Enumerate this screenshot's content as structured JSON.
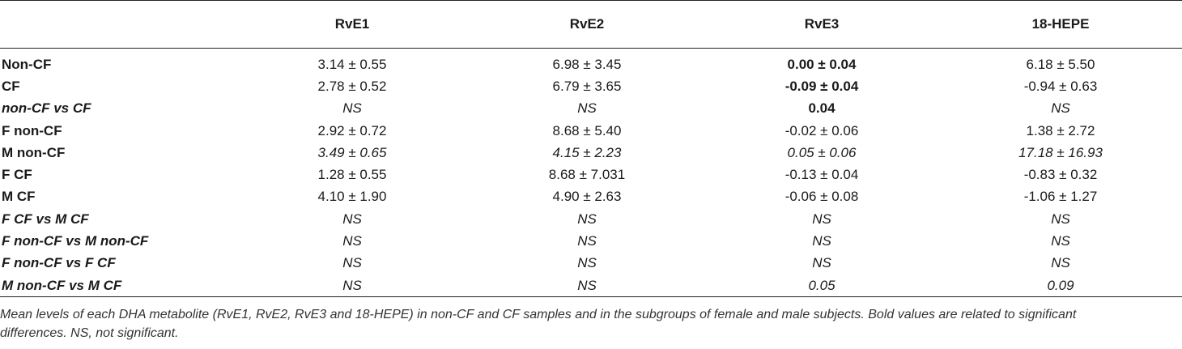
{
  "table": {
    "headers": [
      "",
      "RvE1",
      "RvE2",
      "RvE3",
      "18-HEPE"
    ],
    "rows": [
      {
        "label": "Non-CF",
        "label_style": "b",
        "cells": [
          {
            "text": "3.14 ± 0.55",
            "style": ""
          },
          {
            "text": "6.98 ± 3.45",
            "style": ""
          },
          {
            "text": "0.00 ± 0.04",
            "style": "b"
          },
          {
            "text": "6.18 ± 5.50",
            "style": ""
          }
        ]
      },
      {
        "label": "CF",
        "label_style": "b",
        "cells": [
          {
            "text": "2.78 ± 0.52",
            "style": ""
          },
          {
            "text": "6.79 ± 3.65",
            "style": ""
          },
          {
            "text": "-0.09 ± 0.04",
            "style": "b"
          },
          {
            "text": "-0.94 ± 0.63",
            "style": ""
          }
        ]
      },
      {
        "label": "non-CF vs CF",
        "label_style": "bi",
        "cells": [
          {
            "text": "NS",
            "style": "i"
          },
          {
            "text": "NS",
            "style": "i"
          },
          {
            "text": "0.04",
            "style": "b"
          },
          {
            "text": "NS",
            "style": "i"
          }
        ]
      },
      {
        "label": "F non-CF",
        "label_style": "b",
        "cells": [
          {
            "text": "2.92 ± 0.72",
            "style": ""
          },
          {
            "text": "8.68 ± 5.40",
            "style": ""
          },
          {
            "text": "-0.02 ± 0.06",
            "style": ""
          },
          {
            "text": "1.38 ± 2.72",
            "style": ""
          }
        ]
      },
      {
        "label": "M non-CF",
        "label_style": "b",
        "cells": [
          {
            "text": "3.49 ± 0.65",
            "style": "i"
          },
          {
            "text": "4.15 ± 2.23",
            "style": "i"
          },
          {
            "text": "0.05 ± 0.06",
            "style": "i"
          },
          {
            "text": "17.18 ± 16.93",
            "style": "i"
          }
        ]
      },
      {
        "label": "F CF",
        "label_style": "b",
        "cells": [
          {
            "text": "1.28 ± 0.55",
            "style": ""
          },
          {
            "text": "8.68 ± 7.031",
            "style": ""
          },
          {
            "text": "-0.13 ± 0.04",
            "style": ""
          },
          {
            "text": "-0.83 ± 0.32",
            "style": ""
          }
        ]
      },
      {
        "label": "M CF",
        "label_style": "b",
        "cells": [
          {
            "text": "4.10 ± 1.90",
            "style": ""
          },
          {
            "text": "4.90 ± 2.63",
            "style": ""
          },
          {
            "text": "-0.06 ± 0.08",
            "style": ""
          },
          {
            "text": "-1.06 ± 1.27",
            "style": ""
          }
        ]
      },
      {
        "label": "F CF vs M CF",
        "label_style": "bi",
        "cells": [
          {
            "text": "NS",
            "style": "i"
          },
          {
            "text": "NS",
            "style": "i"
          },
          {
            "text": "NS",
            "style": "i"
          },
          {
            "text": "NS",
            "style": "i"
          }
        ]
      },
      {
        "label": "F non-CF vs M non-CF",
        "label_style": "bi",
        "cells": [
          {
            "text": "NS",
            "style": "i"
          },
          {
            "text": "NS",
            "style": "i"
          },
          {
            "text": "NS",
            "style": "i"
          },
          {
            "text": "NS",
            "style": "i"
          }
        ]
      },
      {
        "label": "F non-CF vs F CF",
        "label_style": "bi",
        "cells": [
          {
            "text": "NS",
            "style": "i"
          },
          {
            "text": "NS",
            "style": "i"
          },
          {
            "text": "NS",
            "style": "i"
          },
          {
            "text": "NS",
            "style": "i"
          }
        ]
      },
      {
        "label": "M non-CF vs M CF",
        "label_style": "bi",
        "cells": [
          {
            "text": "NS",
            "style": "i"
          },
          {
            "text": "NS",
            "style": "i"
          },
          {
            "text": "0.05",
            "style": "i"
          },
          {
            "text": "0.09",
            "style": "i"
          }
        ]
      }
    ]
  },
  "caption": {
    "line1": "Mean levels of each DHA metabolite (RvE1, RvE2, RvE3 and 18-HEPE) in non-CF and CF samples and in the subgroups of female and male subjects. Bold values are related to significant",
    "line2": "differences. NS, not significant."
  }
}
